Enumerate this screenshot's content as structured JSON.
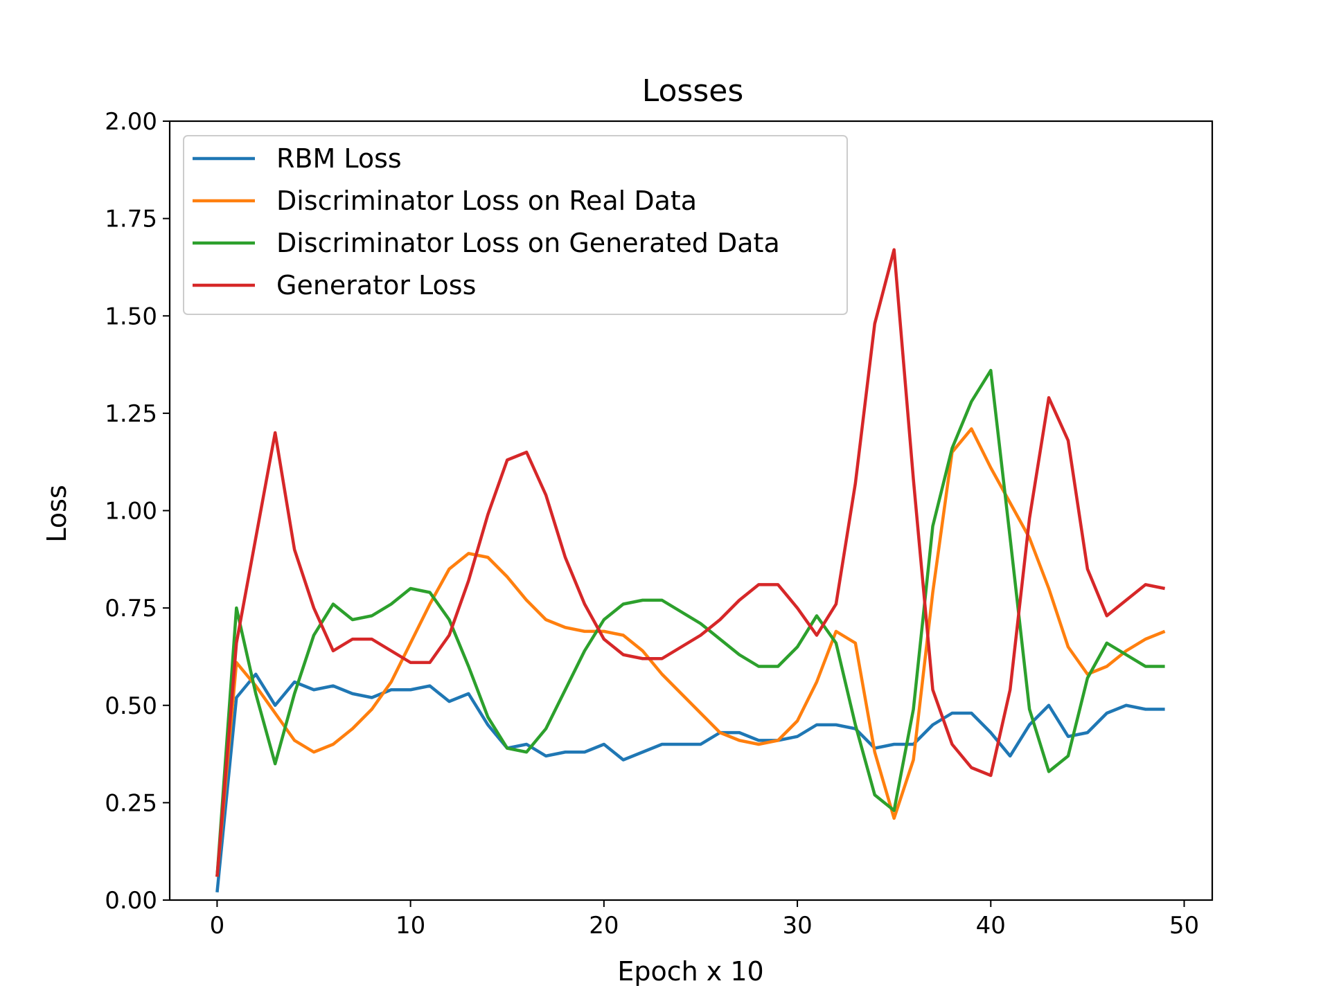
{
  "chart_data": {
    "type": "line",
    "title": "Losses",
    "xlabel": "Epoch x 10",
    "ylabel": "Loss",
    "xlim": [
      -2.45,
      51.45
    ],
    "ylim": [
      0,
      2.0
    ],
    "xticks": [
      0,
      10,
      20,
      30,
      40,
      50
    ],
    "xtick_labels": [
      "0",
      "10",
      "20",
      "30",
      "40",
      "50"
    ],
    "yticks": [
      0,
      0.25,
      0.5,
      0.75,
      1.0,
      1.25,
      1.5,
      1.75,
      2.0
    ],
    "ytick_labels": [
      "0.00",
      "0.25",
      "0.50",
      "0.75",
      "1.00",
      "1.25",
      "1.50",
      "1.75",
      "2.00"
    ],
    "grid": false,
    "legend_position": "top-left",
    "x": [
      0,
      1,
      2,
      3,
      4,
      5,
      6,
      7,
      8,
      9,
      10,
      11,
      12,
      13,
      14,
      15,
      16,
      17,
      18,
      19,
      20,
      21,
      22,
      23,
      24,
      25,
      26,
      27,
      28,
      29,
      30,
      31,
      32,
      33,
      34,
      35,
      36,
      37,
      38,
      39,
      40,
      41,
      42,
      43,
      44,
      45,
      46,
      47,
      48,
      49
    ],
    "series": [
      {
        "name": "RBM Loss",
        "color": "#1f77b4",
        "values": [
          0.02,
          0.52,
          0.58,
          0.5,
          0.56,
          0.54,
          0.55,
          0.53,
          0.52,
          0.54,
          0.54,
          0.55,
          0.51,
          0.53,
          0.45,
          0.39,
          0.4,
          0.37,
          0.38,
          0.38,
          0.4,
          0.36,
          0.38,
          0.4,
          0.4,
          0.4,
          0.43,
          0.43,
          0.41,
          0.41,
          0.42,
          0.45,
          0.45,
          0.44,
          0.39,
          0.4,
          0.4,
          0.45,
          0.48,
          0.48,
          0.43,
          0.37,
          0.45,
          0.5,
          0.42,
          0.43,
          0.48,
          0.5,
          0.49,
          0.49
        ]
      },
      {
        "name": "Discriminator Loss on Real Data",
        "color": "#ff7f0e",
        "values": [
          0.06,
          0.61,
          0.55,
          0.48,
          0.41,
          0.38,
          0.4,
          0.44,
          0.49,
          0.56,
          0.66,
          0.76,
          0.85,
          0.89,
          0.88,
          0.83,
          0.77,
          0.72,
          0.7,
          0.69,
          0.69,
          0.68,
          0.64,
          0.58,
          0.53,
          0.48,
          0.43,
          0.41,
          0.4,
          0.41,
          0.46,
          0.56,
          0.69,
          0.66,
          0.38,
          0.21,
          0.36,
          0.79,
          1.15,
          1.21,
          1.11,
          1.02,
          0.93,
          0.8,
          0.65,
          0.58,
          0.6,
          0.64,
          0.67,
          0.69
        ]
      },
      {
        "name": "Discriminator Loss on Generated Data",
        "color": "#2ca02c",
        "values": [
          0.06,
          0.75,
          0.53,
          0.35,
          0.53,
          0.68,
          0.76,
          0.72,
          0.73,
          0.76,
          0.8,
          0.79,
          0.72,
          0.6,
          0.47,
          0.39,
          0.38,
          0.44,
          0.54,
          0.64,
          0.72,
          0.76,
          0.77,
          0.77,
          0.74,
          0.71,
          0.67,
          0.63,
          0.6,
          0.6,
          0.65,
          0.73,
          0.66,
          0.45,
          0.27,
          0.23,
          0.49,
          0.96,
          1.16,
          1.28,
          1.36,
          0.93,
          0.49,
          0.33,
          0.37,
          0.57,
          0.66,
          0.63,
          0.6,
          0.6
        ]
      },
      {
        "name": "Generator Loss",
        "color": "#d62728",
        "values": [
          0.06,
          0.66,
          0.93,
          1.2,
          0.9,
          0.75,
          0.64,
          0.67,
          0.67,
          0.64,
          0.61,
          0.61,
          0.68,
          0.82,
          0.99,
          1.13,
          1.15,
          1.04,
          0.88,
          0.76,
          0.67,
          0.63,
          0.62,
          0.62,
          0.65,
          0.68,
          0.72,
          0.77,
          0.81,
          0.81,
          0.75,
          0.68,
          0.76,
          1.07,
          1.48,
          1.67,
          1.08,
          0.54,
          0.4,
          0.34,
          0.32,
          0.54,
          0.98,
          1.29,
          1.18,
          0.85,
          0.73,
          0.77,
          0.81,
          0.8
        ]
      }
    ]
  }
}
